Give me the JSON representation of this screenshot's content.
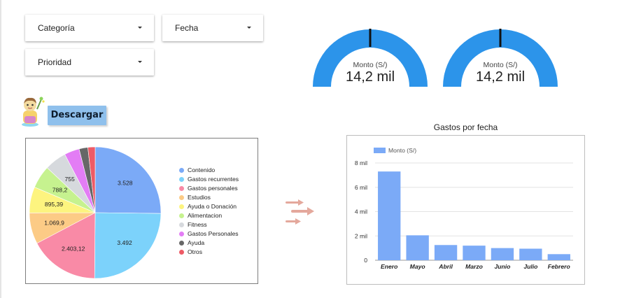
{
  "filters": {
    "categoria": "Categoría",
    "fecha": "Fecha",
    "prioridad": "Prioridad"
  },
  "gauges": [
    {
      "label": "Monto (S/)",
      "value": "14,2 mil",
      "color": "#2c94ea"
    },
    {
      "label": "Monto (S/)",
      "value": "14,2 mil",
      "color": "#2c94ea"
    }
  ],
  "download_label": "Descargar",
  "icons": {
    "mascot": "cartoon-mascot-icon",
    "arrows": "right-arrows-icon",
    "caret": "chevron-down-icon"
  },
  "chart_data": [
    {
      "type": "pie",
      "title": "",
      "legend_position": "right",
      "slices": [
        {
          "name": "Contenido",
          "value": 3528,
          "label": "3.528",
          "color": "#7baaf7"
        },
        {
          "name": "Gastos recurrentes",
          "value": 3492,
          "label": "3.492",
          "color": "#7cd2fb"
        },
        {
          "name": "Gastos personales",
          "value": 2403.12,
          "label": "2.403,12",
          "color": "#f98aa6"
        },
        {
          "name": "Estudios",
          "value": 1069.9,
          "label": "1.069,9",
          "color": "#fccb86"
        },
        {
          "name": "Ayuda o Donación",
          "value": 895.39,
          "label": "895,39",
          "color": "#fdf47f"
        },
        {
          "name": "Alimentacion",
          "value": 788.2,
          "label": "788,2",
          "color": "#c6f28f"
        },
        {
          "name": "Fitness",
          "value": 755,
          "label": "755",
          "color": "#d6d9dd"
        },
        {
          "name": "Gastos Personales",
          "value": 520,
          "label": "",
          "color": "#e37df5"
        },
        {
          "name": "Ayuda",
          "value": 300,
          "label": "",
          "color": "#676767"
        },
        {
          "name": "Otros",
          "value": 250,
          "label": "",
          "color": "#ee5b66"
        }
      ]
    },
    {
      "type": "bar",
      "title": "Gastos por fecha",
      "legend": [
        "Monto (S/)"
      ],
      "legend_position": "top-left",
      "grid": true,
      "color": "#7baaf7",
      "categories": [
        "Enero",
        "Mayo",
        "Abril",
        "Marzo",
        "Junio",
        "Julio",
        "Febrero"
      ],
      "series": [
        {
          "name": "Monto (S/)",
          "values": [
            7300,
            2050,
            1250,
            1200,
            1000,
            950,
            500
          ]
        }
      ],
      "yticks": [
        {
          "value": 0,
          "label": "0"
        },
        {
          "value": 2000,
          "label": "2 mil"
        },
        {
          "value": 4000,
          "label": "4 mil"
        },
        {
          "value": 6000,
          "label": "6 mil"
        },
        {
          "value": 8000,
          "label": "8 mil"
        }
      ],
      "ylim": [
        0,
        8000
      ]
    }
  ]
}
